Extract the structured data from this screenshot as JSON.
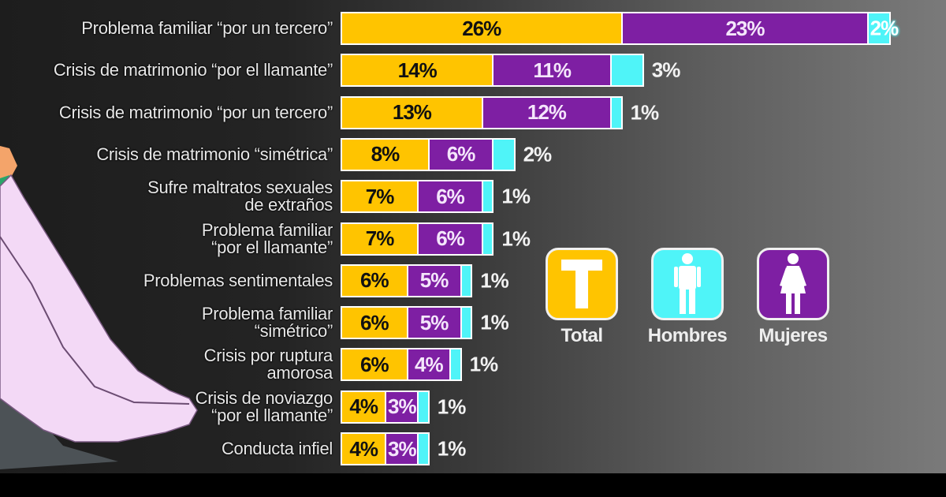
{
  "chart_data": {
    "type": "bar",
    "orientation": "horizontal",
    "stacked": true,
    "title": "",
    "xlabel": "",
    "ylabel": "",
    "legend_position": "right-middle",
    "categories": [
      "Problema familiar “por un tercero”",
      "Crisis de matrimonio “por el llamante”",
      "Crisis de matrimonio “por un tercero”",
      "Crisis de matrimonio “simétrica”",
      "Sufre maltratos sexuales\nde extraños",
      "Problema familiar\n“por el llamante”",
      "Problemas sentimentales",
      "Problema familiar\n“simétrico”",
      "Crisis por ruptura\namorosa",
      "Crisis de noviazgo\n“por el llamante”",
      "Conducta infiel"
    ],
    "series": [
      {
        "name": "Total",
        "color": "#ffc400",
        "values": [
          26,
          14,
          13,
          8,
          7,
          7,
          6,
          6,
          6,
          4,
          4
        ]
      },
      {
        "name": "Mujeres",
        "color": "#7e1fa3",
        "values": [
          23,
          11,
          12,
          6,
          6,
          6,
          5,
          5,
          4,
          3,
          3
        ]
      },
      {
        "name": "Hombres",
        "color": "#4ff4f8",
        "values": [
          2,
          3,
          1,
          2,
          1,
          1,
          1,
          1,
          1,
          1,
          1
        ]
      }
    ],
    "unit": "%"
  },
  "legend": {
    "items": [
      {
        "key": "total",
        "label": "Total",
        "icon": "letter-t-icon",
        "glyph": "T",
        "color": "#ffc400"
      },
      {
        "key": "men",
        "label": "Hombres",
        "icon": "man-icon",
        "color": "#4ff4f8"
      },
      {
        "key": "women",
        "label": "Mujeres",
        "icon": "woman-icon",
        "color": "#7e1fa3"
      }
    ]
  }
}
